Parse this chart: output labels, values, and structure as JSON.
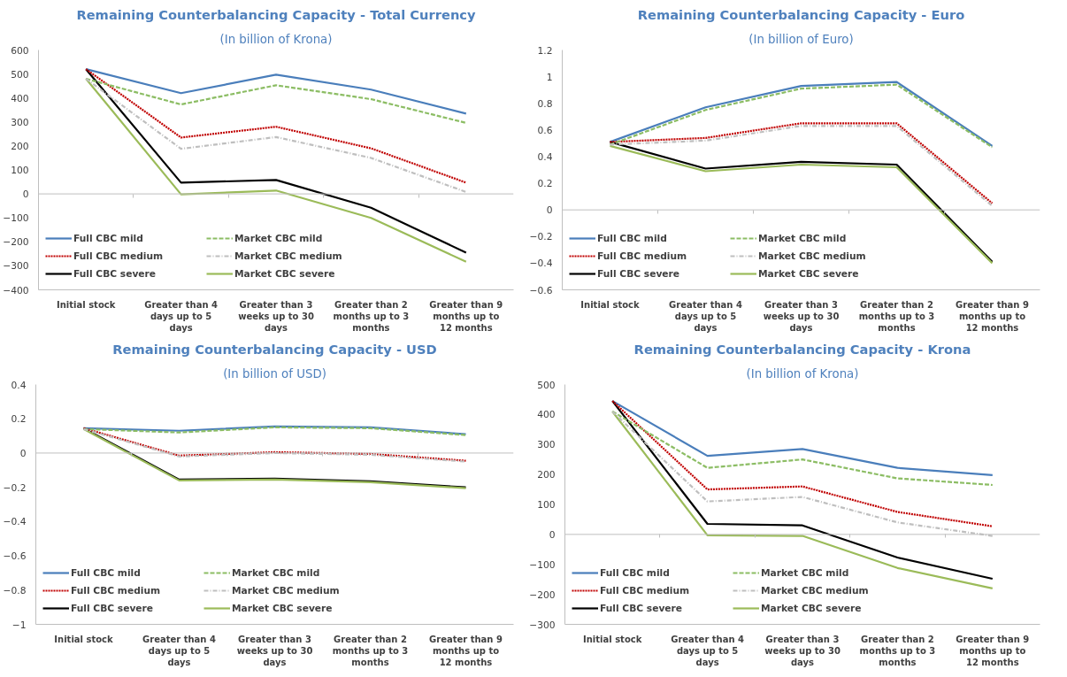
{
  "chart_data": [
    {
      "type": "line",
      "title": "Remaining Counterbalancing Capacity - Total Currency",
      "subtitle": "(In billion of Krona)",
      "categories": [
        "Initial stock",
        "Greater than 4 days up to 5 days",
        "Greater than 3 weeks up to 30 days",
        "Greater than 2 months up to 3 months",
        "Greater than 9 months up to 12 months"
      ],
      "ref_lines": [
        {
          "axis": "y",
          "value": 0,
          "color": "#bfbfbf"
        }
      ],
      "ylim": [
        -400,
        600
      ],
      "yticks": [
        -400,
        -300,
        -200,
        -100,
        0,
        100,
        200,
        300,
        400,
        500,
        600
      ],
      "grid": false,
      "legend": "bottom left",
      "marker": "none",
      "series": [
        {
          "name": "Full CBC mild",
          "color": "#4a7ebb",
          "line_style": "solid",
          "values": [
            520,
            420,
            497,
            435,
            335
          ]
        },
        {
          "name": "Full CBC medium",
          "color": "#c00000",
          "line_style": "dotted",
          "values": [
            520,
            235,
            280,
            190,
            47
          ]
        },
        {
          "name": "Full CBC severe",
          "color": "#000000",
          "line_style": "solid",
          "values": [
            520,
            47,
            58,
            -58,
            -245
          ]
        },
        {
          "name": "Market CBC mild",
          "color": "#8cbd64",
          "line_style": "dashed",
          "values": [
            480,
            373,
            453,
            395,
            296
          ]
        },
        {
          "name": "Market CBC medium",
          "color": "#bfbfbf",
          "line_style": "dashdot",
          "values": [
            480,
            188,
            237,
            150,
            8
          ]
        },
        {
          "name": "Market CBC severe",
          "color": "#9bbb59",
          "line_style": "solid",
          "values": [
            480,
            -2,
            14,
            -100,
            -283
          ]
        }
      ]
    },
    {
      "type": "line",
      "title": "Remaining Counterbalancing Capacity - Euro",
      "subtitle": "(In billion of Euro)",
      "categories": [
        "Initial stock",
        "Greater than 4 days up to 5 days",
        "Greater than 3 weeks up to 30 days",
        "Greater than 2 months up to 3 months",
        "Greater than 9 months up to 12 months"
      ],
      "ref_lines": [
        {
          "axis": "y",
          "value": 0,
          "color": "#bfbfbf"
        }
      ],
      "ylim": [
        -0.6,
        1.2
      ],
      "yticks": [
        -0.6,
        -0.4,
        -0.2,
        0,
        0.2,
        0.4,
        0.6,
        0.8,
        1,
        1.2
      ],
      "grid": false,
      "legend": "bottom left",
      "marker": "none",
      "series": [
        {
          "name": "Full CBC mild",
          "color": "#4a7ebb",
          "line_style": "solid",
          "values": [
            0.51,
            0.77,
            0.93,
            0.96,
            0.48
          ]
        },
        {
          "name": "Full CBC medium",
          "color": "#c00000",
          "line_style": "dotted",
          "values": [
            0.51,
            0.54,
            0.65,
            0.65,
            0.05
          ]
        },
        {
          "name": "Full CBC severe",
          "color": "#000000",
          "line_style": "solid",
          "values": [
            0.51,
            0.31,
            0.36,
            0.34,
            -0.39
          ]
        },
        {
          "name": "Market CBC mild",
          "color": "#8cbd64",
          "line_style": "dashed",
          "values": [
            0.49,
            0.75,
            0.91,
            0.94,
            0.47
          ]
        },
        {
          "name": "Market CBC medium",
          "color": "#bfbfbf",
          "line_style": "dashdot",
          "values": [
            0.49,
            0.52,
            0.63,
            0.63,
            0.03
          ]
        },
        {
          "name": "Market CBC severe",
          "color": "#9bbb59",
          "line_style": "solid",
          "values": [
            0.48,
            0.29,
            0.34,
            0.32,
            -0.4
          ]
        }
      ]
    },
    {
      "type": "line",
      "title": "Remaining Counterbalancing Capacity - USD",
      "subtitle": "(In billion of USD)",
      "categories": [
        "Initial stock",
        "Greater than 4 days up to 5 days",
        "Greater than 3 weeks up to 30 days",
        "Greater than 2 months up to 3 months",
        "Greater than 9 months up to 12 months"
      ],
      "ref_lines": [
        {
          "axis": "y",
          "value": 0,
          "color": "#bfbfbf"
        }
      ],
      "ylim": [
        -1,
        0.4
      ],
      "yticks": [
        -1,
        -0.8,
        -0.6,
        -0.4,
        -0.2,
        0,
        0.2,
        0.4
      ],
      "grid": false,
      "legend": "bottom left",
      "marker": "none",
      "series": [
        {
          "name": "Full CBC mild",
          "color": "#4a7ebb",
          "line_style": "solid",
          "values": [
            0.145,
            0.13,
            0.155,
            0.15,
            0.11
          ]
        },
        {
          "name": "Full CBC medium",
          "color": "#c00000",
          "line_style": "dotted",
          "values": [
            0.145,
            -0.015,
            0.005,
            -0.005,
            -0.045
          ]
        },
        {
          "name": "Full CBC severe",
          "color": "#000000",
          "line_style": "solid",
          "values": [
            0.145,
            -0.155,
            -0.15,
            -0.165,
            -0.2
          ]
        },
        {
          "name": "Market CBC mild",
          "color": "#8cbd64",
          "line_style": "dashed",
          "values": [
            0.14,
            0.12,
            0.15,
            0.145,
            0.105
          ]
        },
        {
          "name": "Market CBC medium",
          "color": "#bfbfbf",
          "line_style": "dashdot",
          "values": [
            0.14,
            -0.02,
            0,
            -0.01,
            -0.05
          ]
        },
        {
          "name": "Market CBC severe",
          "color": "#9bbb59",
          "line_style": "solid",
          "values": [
            0.14,
            -0.16,
            -0.155,
            -0.17,
            -0.205
          ]
        }
      ]
    },
    {
      "type": "line",
      "title": "Remaining Counterbalancing Capacity - Krona",
      "subtitle": "(In billion of Krona)",
      "categories": [
        "Initial stock",
        "Greater than 4 days up to 5 days",
        "Greater than 3 weeks up to 30 days",
        "Greater than 2 months up to 3 months",
        "Greater than 9 months up to 12 months"
      ],
      "ref_lines": [
        {
          "axis": "y",
          "value": 0,
          "color": "#bfbfbf"
        }
      ],
      "ylim": [
        -300,
        500
      ],
      "yticks": [
        -300,
        -200,
        -100,
        0,
        100,
        200,
        300,
        400,
        500
      ],
      "grid": false,
      "legend": "bottom left",
      "marker": "none",
      "series": [
        {
          "name": "Full CBC mild",
          "color": "#4a7ebb",
          "line_style": "solid",
          "values": [
            445,
            262,
            285,
            222,
            198
          ]
        },
        {
          "name": "Full CBC medium",
          "color": "#c00000",
          "line_style": "dotted",
          "values": [
            445,
            150,
            160,
            75,
            27
          ]
        },
        {
          "name": "Full CBC severe",
          "color": "#000000",
          "line_style": "solid",
          "values": [
            445,
            35,
            30,
            -77,
            -148
          ]
        },
        {
          "name": "Market CBC mild",
          "color": "#8cbd64",
          "line_style": "dashed",
          "values": [
            410,
            222,
            250,
            187,
            165
          ]
        },
        {
          "name": "Market CBC medium",
          "color": "#bfbfbf",
          "line_style": "dashdot",
          "values": [
            410,
            110,
            125,
            40,
            -5
          ]
        },
        {
          "name": "Market CBC severe",
          "color": "#9bbb59",
          "line_style": "solid",
          "values": [
            410,
            -3,
            -5,
            -112,
            -180
          ]
        }
      ]
    }
  ]
}
